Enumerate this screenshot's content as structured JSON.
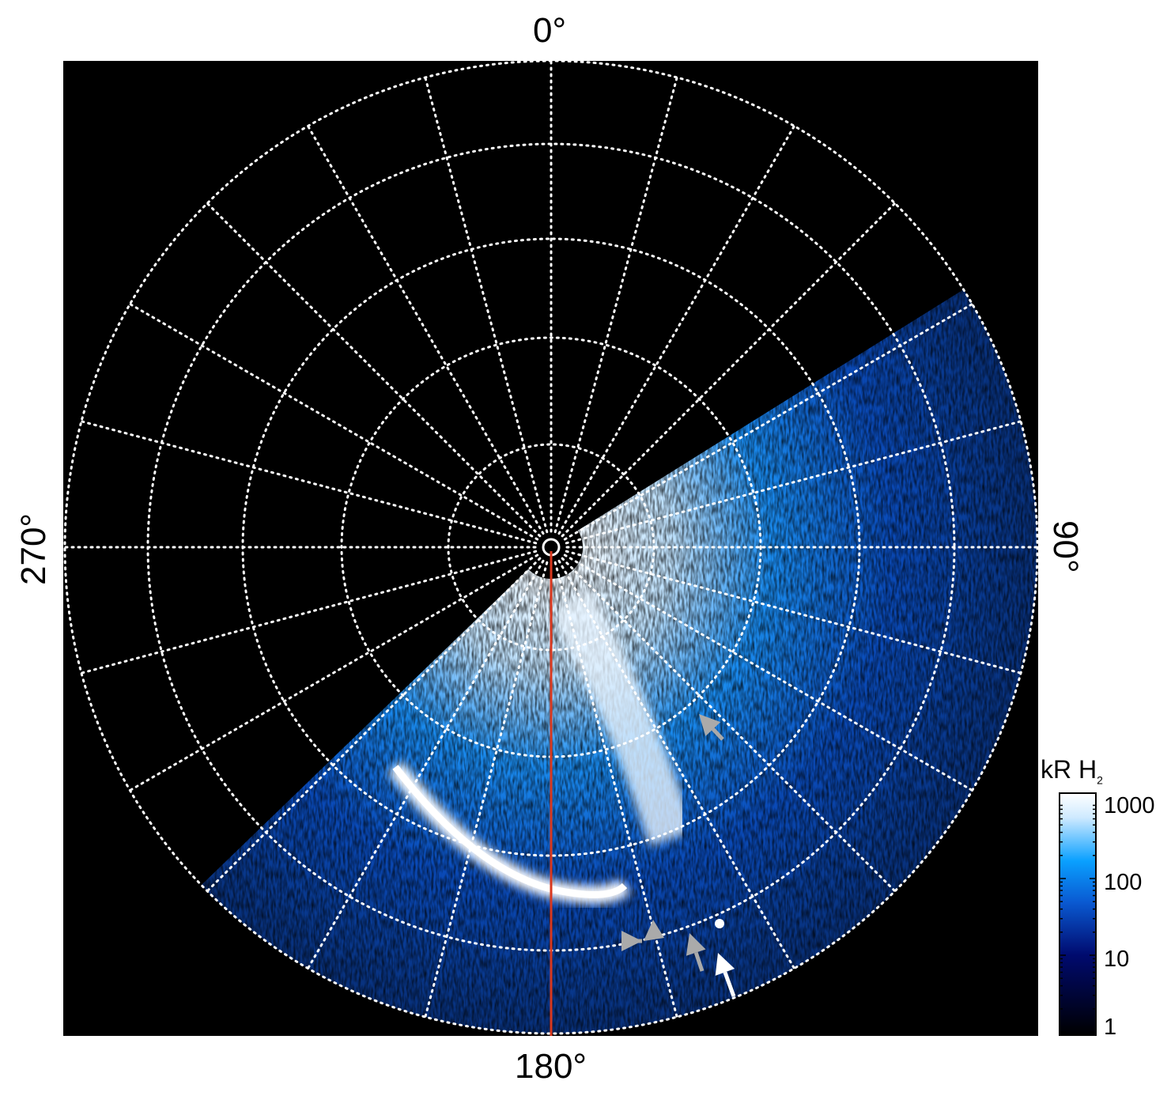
{
  "axes": {
    "top_label": "0°",
    "right_label": "90°",
    "bottom_label": "180°",
    "left_label": "270°",
    "longitude_spacing_deg": 15
  },
  "colorbar": {
    "title_main": "kR H",
    "title_sub": "2",
    "ticks": [
      "1000",
      "100",
      "10",
      "1"
    ],
    "scale": "log",
    "range": [
      1,
      1000
    ],
    "colors": [
      "#000000",
      "#000a6e",
      "#0a5ad2",
      "#0aa0ff",
      "#cfeaff",
      "#ffffff"
    ]
  },
  "colors": {
    "background": "#000000",
    "grid": "#ffffff",
    "meridian_line": "#d9381e",
    "arrow_gray": "#aaaaaa",
    "arrow_white": "#ffffff"
  }
}
